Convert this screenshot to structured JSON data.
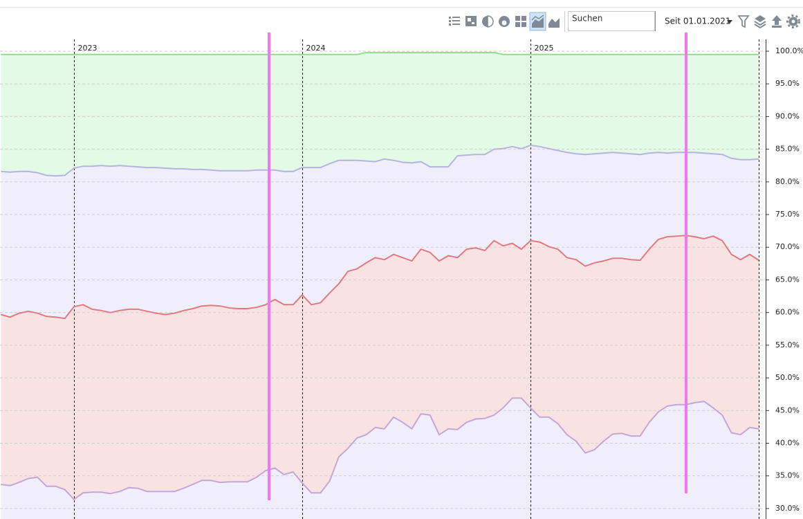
{
  "toolbar": {
    "search_placeholder": "Suchen",
    "period": "Seit 01.01.2021"
  },
  "chart_data": {
    "type": "area",
    "x": [
      2022.68,
      2022.72,
      2022.76,
      2022.8,
      2022.84,
      2022.88,
      2022.92,
      2022.96,
      2023,
      2023.04,
      2023.08,
      2023.12,
      2023.16,
      2023.2,
      2023.24,
      2023.28,
      2023.32,
      2023.36,
      2023.4,
      2023.44,
      2023.48,
      2023.52,
      2023.56,
      2023.6,
      2023.64,
      2023.68,
      2023.72,
      2023.76,
      2023.8,
      2023.84,
      2023.88,
      2023.92,
      2023.96,
      2024,
      2024.04,
      2024.08,
      2024.12,
      2024.16,
      2024.2,
      2024.24,
      2024.28,
      2024.32,
      2024.36,
      2024.4,
      2024.44,
      2024.48,
      2024.52,
      2024.56,
      2024.6,
      2024.64,
      2024.68,
      2024.72,
      2024.76,
      2024.8,
      2024.84,
      2024.88,
      2024.92,
      2024.96,
      2025,
      2025.04,
      2025.08,
      2025.12,
      2025.16,
      2025.2,
      2025.24,
      2025.28,
      2025.32,
      2025.36,
      2025.4,
      2025.44,
      2025.48,
      2025.52,
      2025.56,
      2025.6,
      2025.64,
      2025.68,
      2025.72,
      2025.76,
      2025.8,
      2025.84,
      2025.88,
      2025.92,
      2025.96,
      2026
    ],
    "series": [
      {
        "color": "#c3a6d9",
        "fill": "#f0eefa",
        "values": [
          33.7,
          33.5,
          34.0,
          34.6,
          34.8,
          33.4,
          33.4,
          32.9,
          31.4,
          32.4,
          32.5,
          32.5,
          32.3,
          32.6,
          33.2,
          33.1,
          32.6,
          32.6,
          32.6,
          32.6,
          33.1,
          33.7,
          34.3,
          34.3,
          34.0,
          34.1,
          34.1,
          34.1,
          34.8,
          35.8,
          36.2,
          35.2,
          35.6,
          33.9,
          32.4,
          32.4,
          34.2,
          37.9,
          39.2,
          40.8,
          41.3,
          42.4,
          42.2,
          44.0,
          43.2,
          42.2,
          44.5,
          44.3,
          41.3,
          42.2,
          42.1,
          43.2,
          43.7,
          43.8,
          44.3,
          45.4,
          46.9,
          46.9,
          45.4,
          44.0,
          44.0,
          43.0,
          41.3,
          40.3,
          38.5,
          39.0,
          40.3,
          41.4,
          41.5,
          41.1,
          41.1,
          43.2,
          44.8,
          45.7,
          45.9,
          45.9,
          46.2,
          46.4,
          45.4,
          44.3,
          41.6,
          41.3,
          42.4,
          42.2
        ]
      },
      {
        "color": "#e07a82",
        "fill": "#f9e2e2",
        "values": [
          59.7,
          59.3,
          59.9,
          60.2,
          59.9,
          59.4,
          59.3,
          59.1,
          60.9,
          61.2,
          60.5,
          60.3,
          60.0,
          60.3,
          60.5,
          60.5,
          60.2,
          59.9,
          59.7,
          59.9,
          60.3,
          60.6,
          61.0,
          61.1,
          61.0,
          60.7,
          60.6,
          60.6,
          60.8,
          61.2,
          62.0,
          61.2,
          61.2,
          62.7,
          61.2,
          61.5,
          63.0,
          64.4,
          66.3,
          66.7,
          67.6,
          68.4,
          68.1,
          68.9,
          68.4,
          67.9,
          69.7,
          69.2,
          67.9,
          68.7,
          68.4,
          69.7,
          69.9,
          69.5,
          71.0,
          70.2,
          70.6,
          69.7,
          71.0,
          70.8,
          70.1,
          69.7,
          68.4,
          68.1,
          67.1,
          67.6,
          67.9,
          68.3,
          68.3,
          68.1,
          68.0,
          69.7,
          71.2,
          71.6,
          71.7,
          71.8,
          71.6,
          71.3,
          71.7,
          71.0,
          68.9,
          68.1,
          68.9,
          68.0
        ]
      },
      {
        "color": "#b6b4de",
        "fill": "#f0eefa",
        "values": [
          81.6,
          81.5,
          81.6,
          81.6,
          81.4,
          81.0,
          80.9,
          81.0,
          82.1,
          82.4,
          82.4,
          82.5,
          82.4,
          82.5,
          82.4,
          82.3,
          82.2,
          82.2,
          82.1,
          82.0,
          82.0,
          81.9,
          81.9,
          81.8,
          81.7,
          81.7,
          81.7,
          81.7,
          81.8,
          81.8,
          81.8,
          81.6,
          81.6,
          82.2,
          82.2,
          82.2,
          82.8,
          83.3,
          83.3,
          83.3,
          83.2,
          83.1,
          83.5,
          83.3,
          83.0,
          82.9,
          83.1,
          82.3,
          82.3,
          82.3,
          84.0,
          84.1,
          84.2,
          84.2,
          85.0,
          85.1,
          85.4,
          85.1,
          85.6,
          85.4,
          85.1,
          84.8,
          84.5,
          84.3,
          84.2,
          84.3,
          84.4,
          84.5,
          84.4,
          84.3,
          84.2,
          84.4,
          84.5,
          84.4,
          84.5,
          84.5,
          84.5,
          84.4,
          84.3,
          84.2,
          83.6,
          83.4,
          83.4,
          83.5
        ]
      },
      {
        "color": "#8ede8a",
        "fill": "#e3fae6",
        "values": [
          99.5,
          99.5,
          99.5,
          99.5,
          99.5,
          99.5,
          99.5,
          99.5,
          99.5,
          99.5,
          99.5,
          99.5,
          99.5,
          99.5,
          99.5,
          99.5,
          99.5,
          99.5,
          99.5,
          99.5,
          99.5,
          99.5,
          99.5,
          99.5,
          99.5,
          99.5,
          99.5,
          99.5,
          99.5,
          99.5,
          99.5,
          99.5,
          99.5,
          99.5,
          99.5,
          99.5,
          99.5,
          99.5,
          99.5,
          99.5,
          99.8,
          99.8,
          99.8,
          99.8,
          99.8,
          99.8,
          99.8,
          99.8,
          99.8,
          99.8,
          99.8,
          99.8,
          99.8,
          99.8,
          99.8,
          99.5,
          99.5,
          99.5,
          99.5,
          99.5,
          99.5,
          99.5,
          99.5,
          99.5,
          99.5,
          99.5,
          99.5,
          99.5,
          99.5,
          99.5,
          99.5,
          99.5,
          99.5,
          99.5,
          99.5,
          99.5,
          99.5,
          99.5,
          99.5,
          99.5,
          99.5,
          99.5,
          99.5,
          99.5
        ]
      }
    ],
    "xlim": [
      2022.676,
      2026.024
    ],
    "xticks": [
      2023,
      2024,
      2025,
      {
        "value": 2026,
        "label": null
      }
    ],
    "ylim": [
      28.4,
      101.8
    ],
    "yticks": [
      {
        "value": 30,
        "label": "30.0%"
      },
      {
        "value": 35,
        "label": "35.0%"
      },
      {
        "value": 40,
        "label": "40.0%"
      },
      {
        "value": 45,
        "label": "45.0%"
      },
      {
        "value": 50,
        "label": "50.0%"
      },
      {
        "value": 55,
        "label": "55.0%"
      },
      {
        "value": 60,
        "label": "60.0%"
      },
      {
        "value": 65,
        "label": "65.0%"
      },
      {
        "value": 70,
        "label": "70.0%"
      },
      {
        "value": 75,
        "label": "75.0%"
      },
      {
        "value": 80,
        "label": "80.0%"
      },
      {
        "value": 85,
        "label": "85.0%"
      },
      {
        "value": 90,
        "label": "90.0%"
      },
      {
        "value": 95,
        "label": "95.0%"
      },
      {
        "value": 100,
        "label": "100.0%"
      }
    ],
    "grid": true
  }
}
